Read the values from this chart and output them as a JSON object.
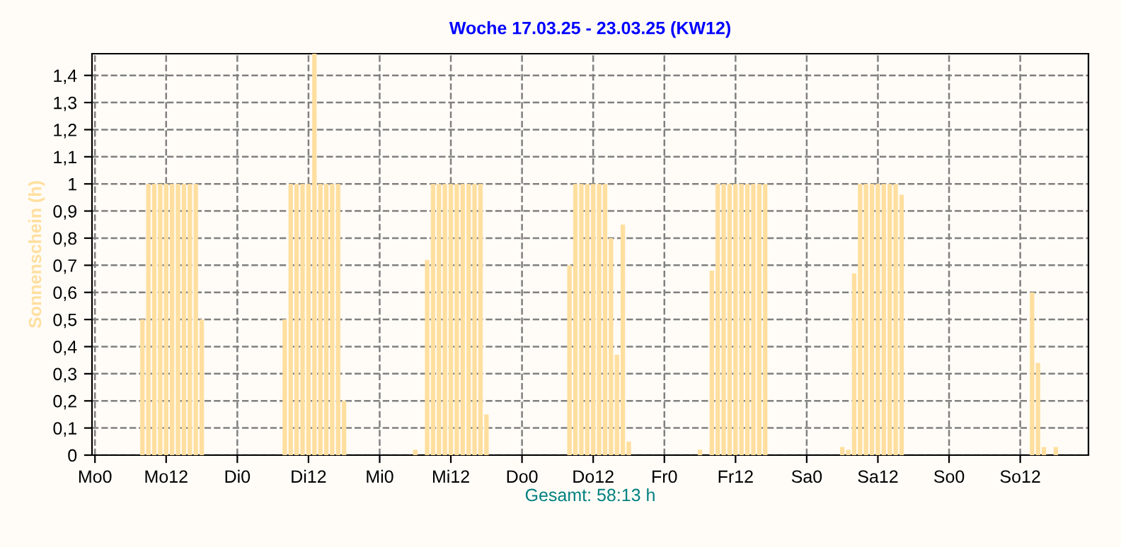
{
  "chart_data": {
    "type": "bar",
    "title": "Woche 17.03.25 - 23.03.25 (KW12)",
    "xlabel": "Gesamt: 58:13 h",
    "ylabel": "Sonnenschein (h)",
    "categories": [
      "Mo0",
      null,
      null,
      null,
      null,
      null,
      null,
      null,
      null,
      null,
      null,
      null,
      "Mo12",
      null,
      null,
      null,
      null,
      null,
      null,
      null,
      null,
      null,
      null,
      null,
      "Di0",
      null,
      null,
      null,
      null,
      null,
      null,
      null,
      null,
      null,
      null,
      null,
      "Di12",
      null,
      null,
      null,
      null,
      null,
      null,
      null,
      null,
      null,
      null,
      null,
      "Mi0",
      null,
      null,
      null,
      null,
      null,
      null,
      null,
      null,
      null,
      null,
      null,
      "Mi12",
      null,
      null,
      null,
      null,
      null,
      null,
      null,
      null,
      null,
      null,
      null,
      "Do0",
      null,
      null,
      null,
      null,
      null,
      null,
      null,
      null,
      null,
      null,
      null,
      "Do12",
      null,
      null,
      null,
      null,
      null,
      null,
      null,
      null,
      null,
      null,
      null,
      "Fr0",
      null,
      null,
      null,
      null,
      null,
      null,
      null,
      null,
      null,
      null,
      null,
      "Fr12",
      null,
      null,
      null,
      null,
      null,
      null,
      null,
      null,
      null,
      null,
      null,
      "Sa0",
      null,
      null,
      null,
      null,
      null,
      null,
      null,
      null,
      null,
      null,
      null,
      "Sa12",
      null,
      null,
      null,
      null,
      null,
      null,
      null,
      null,
      null,
      null,
      null,
      "So0",
      null,
      null,
      null,
      null,
      null,
      null,
      null,
      null,
      null,
      null,
      null,
      "So12",
      null,
      null,
      null,
      null,
      null,
      null,
      null,
      null,
      null,
      null,
      null
    ],
    "values": [
      0,
      0,
      0,
      0,
      0,
      0,
      0,
      0,
      0.5,
      1,
      1,
      1,
      1,
      1,
      1,
      1,
      1,
      1,
      0.5,
      0,
      0,
      0,
      0,
      0,
      0,
      0,
      0,
      0,
      0,
      0,
      0,
      0,
      0.5,
      1,
      1,
      1,
      1,
      1.48,
      1,
      1,
      1,
      1,
      0.2,
      0,
      0,
      0,
      0,
      0,
      0,
      0,
      0,
      0,
      0,
      0,
      0.02,
      0,
      0.72,
      1,
      1,
      1,
      1,
      1,
      1,
      1,
      1,
      1,
      0.15,
      0,
      0,
      0,
      0,
      0,
      0,
      0,
      0,
      0,
      0,
      0,
      0,
      0,
      0.7,
      1,
      1,
      1,
      1,
      1,
      1,
      0.8,
      0.37,
      0.85,
      0.05,
      0,
      0,
      0,
      0,
      0,
      0,
      0,
      0,
      0,
      0,
      0,
      0.02,
      0,
      0.68,
      1,
      1,
      1,
      1,
      1,
      1,
      1,
      1,
      1,
      0,
      0,
      0,
      0,
      0,
      0,
      0,
      0,
      0,
      0,
      0,
      0,
      0.03,
      0.02,
      0.67,
      1,
      1,
      1,
      1,
      1,
      1,
      1,
      0.96,
      0,
      0,
      0,
      0,
      0,
      0,
      0,
      0,
      0,
      0,
      0,
      0,
      0,
      0,
      0,
      0,
      0,
      0,
      0,
      0,
      0,
      0.6,
      0.34,
      0.03,
      0,
      0.03,
      0,
      0,
      0,
      0,
      0
    ],
    "color": "#ffdf9f",
    "ylim": [
      0,
      1.48
    ],
    "yticks": [
      0,
      {
        "value": 0.1,
        "label": "0,1"
      },
      {
        "value": 0.2,
        "label": "0,2"
      },
      {
        "value": 0.3,
        "label": "0,3"
      },
      {
        "value": 0.4,
        "label": "0,4"
      },
      {
        "value": 0.5,
        "label": "0,5"
      },
      {
        "value": 0.6,
        "label": "0,6"
      },
      {
        "value": 0.7,
        "label": "0,7"
      },
      {
        "value": 0.8,
        "label": "0,8"
      },
      {
        "value": 0.9,
        "label": "0,9"
      },
      1,
      {
        "value": 1.1,
        "label": "1,1"
      },
      {
        "value": 1.2,
        "label": "1,2"
      },
      {
        "value": 1.3,
        "label": "1,3"
      },
      {
        "value": 1.4,
        "label": "1,4"
      }
    ],
    "grid": true,
    "line_style": "dashed"
  }
}
